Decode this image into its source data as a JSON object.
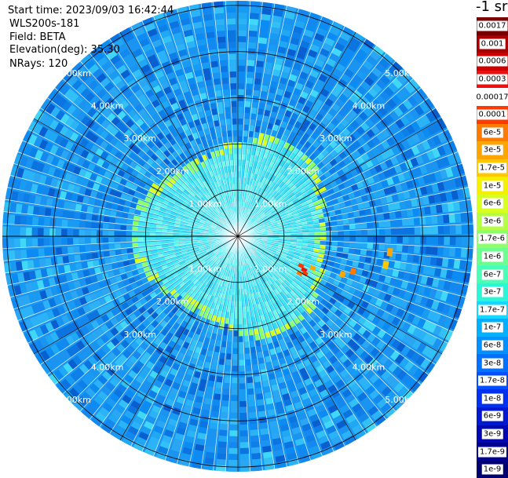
{
  "info": {
    "start_time": "Start time: 2023/09/03 16:42:44",
    "instrument": "WLS200s-181",
    "field": "Field: BETA",
    "elevation": "Elevation(deg): 35.30",
    "nrays": "NRays: 120"
  },
  "colorbar": {
    "unit_label": "-1 sr",
    "bins": [
      {
        "label": "0.0017",
        "color": "#7a0000"
      },
      {
        "label": "0.001",
        "color": "#a80000"
      },
      {
        "label": "0.0006",
        "color": "#cc0000"
      },
      {
        "label": "0.0003",
        "color": "#ee1010"
      },
      {
        "label": "0.00017",
        "color": "#ffffff"
      },
      {
        "label": "0.0001",
        "color": "#ff3a00"
      },
      {
        "label": "6e-5",
        "color": "#ff7a00"
      },
      {
        "label": "3e-5",
        "color": "#ffa500"
      },
      {
        "label": "1.7e-5",
        "color": "#ffc800"
      },
      {
        "label": "1e-5",
        "color": "#f5f000"
      },
      {
        "label": "6e-6",
        "color": "#d8ff20"
      },
      {
        "label": "3e-6",
        "color": "#b4ff46"
      },
      {
        "label": "1.7e-6",
        "color": "#8eff6c"
      },
      {
        "label": "1e-6",
        "color": "#6cff90"
      },
      {
        "label": "6e-7",
        "color": "#4cffb6"
      },
      {
        "label": "3e-7",
        "color": "#2cf6d8"
      },
      {
        "label": "1.7e-7",
        "color": "#14d8ff"
      },
      {
        "label": "1e-7",
        "color": "#00b0ff"
      },
      {
        "label": "6e-8",
        "color": "#0090ff"
      },
      {
        "label": "3e-8",
        "color": "#0070ff"
      },
      {
        "label": "1.7e-8",
        "color": "#0050ff"
      },
      {
        "label": "1e-8",
        "color": "#0030f0"
      },
      {
        "label": "6e-9",
        "color": "#0018d0"
      },
      {
        "label": "3e-9",
        "color": "#0008b0"
      },
      {
        "label": "1.7e-9",
        "color": "#000090"
      },
      {
        "label": "1e-9",
        "color": "#000070"
      }
    ]
  },
  "range_rings": [
    {
      "km": 1,
      "label": "1.00km"
    },
    {
      "km": 2,
      "label": "2.00km"
    },
    {
      "km": 3,
      "label": "3.00km"
    },
    {
      "km": 4,
      "label": "4.00km"
    },
    {
      "km": 5,
      "label": "5.00km"
    }
  ],
  "plot": {
    "max_range_km": 5.1,
    "n_rays": 120,
    "spoke_step_deg": 30,
    "label_quadrant_angles_deg": [
      -45,
      45,
      135,
      225
    ],
    "hot_cells": [
      {
        "angle_deg": 115,
        "r_km": 1.45,
        "color": "#ff3a00"
      },
      {
        "angle_deg": 117,
        "r_km": 1.55,
        "color": "#ee1010"
      },
      {
        "angle_deg": 119,
        "r_km": 1.6,
        "color": "#ff3a00"
      },
      {
        "angle_deg": 121,
        "r_km": 1.5,
        "color": "#ff7a00"
      },
      {
        "angle_deg": 113,
        "r_km": 1.7,
        "color": "#ffa500"
      },
      {
        "angle_deg": 110,
        "r_km": 2.35,
        "color": "#ffa500"
      },
      {
        "angle_deg": 107,
        "r_km": 2.55,
        "color": "#ff7a00"
      },
      {
        "angle_deg": 101,
        "r_km": 3.2,
        "color": "#ffc800"
      },
      {
        "angle_deg": 96,
        "r_km": 3.25,
        "color": "#ffa500"
      }
    ]
  }
}
